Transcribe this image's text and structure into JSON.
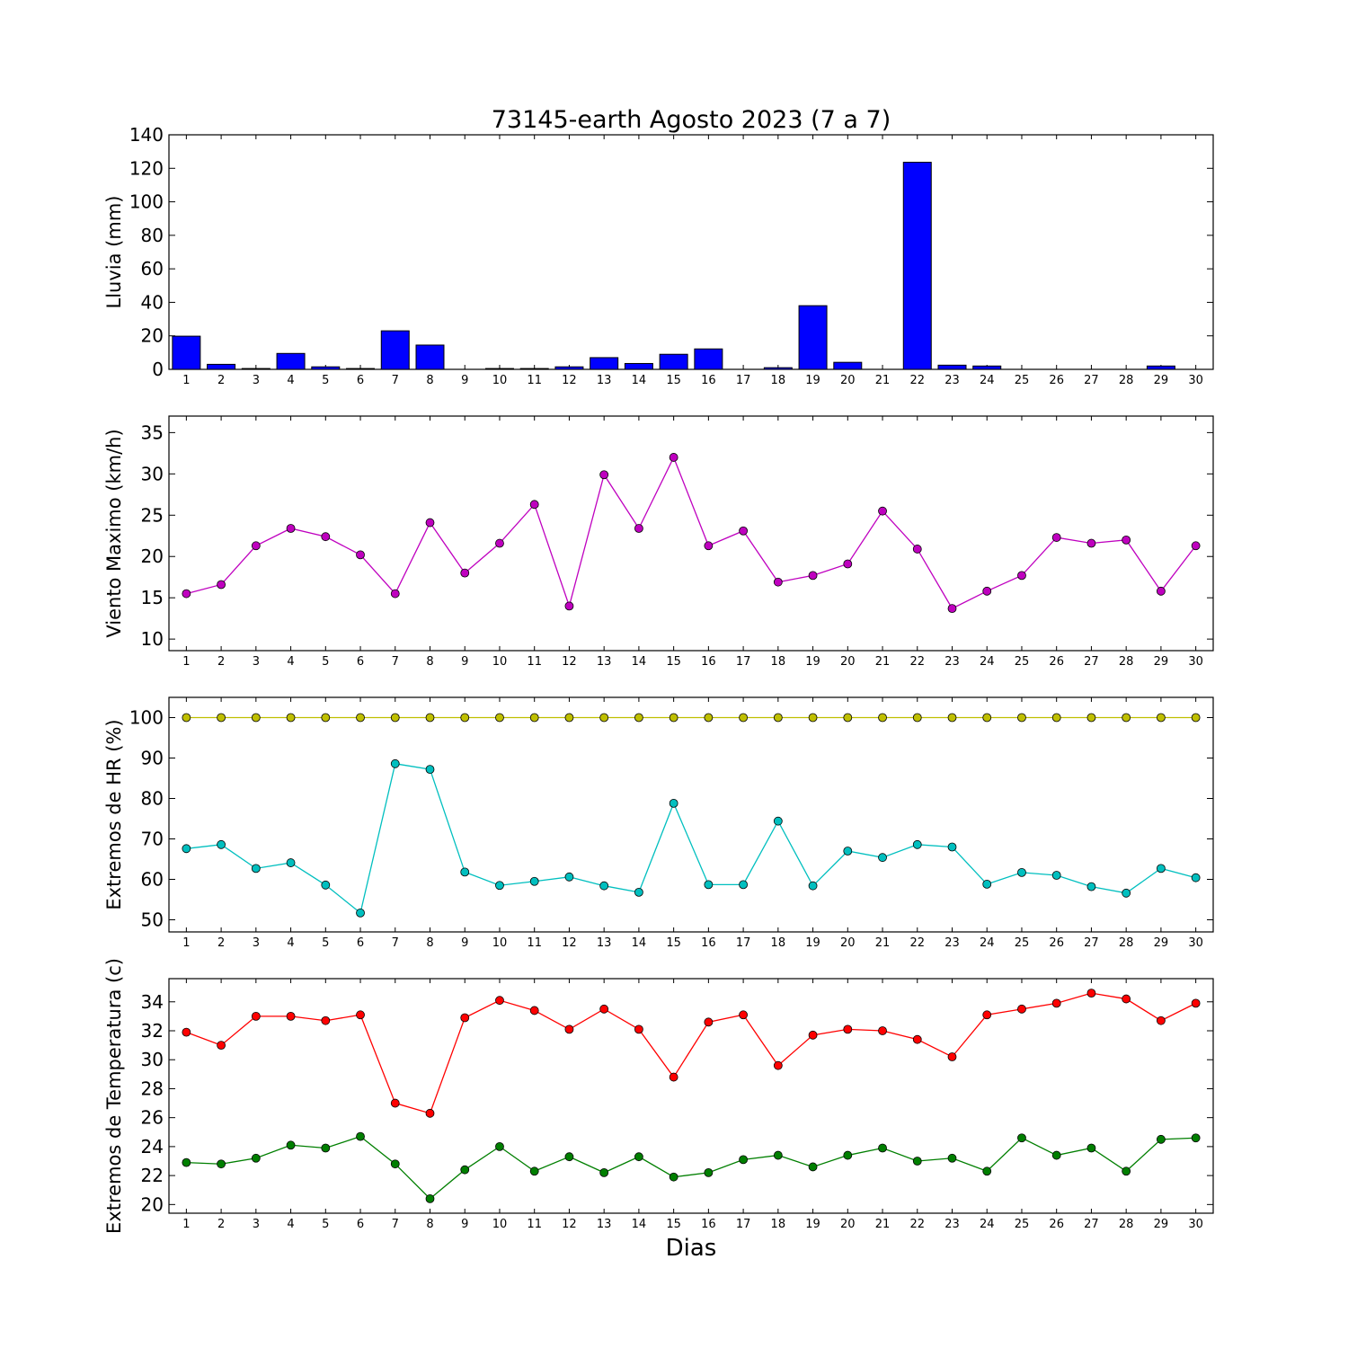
{
  "title": "73145-earth Agosto 2023  (7 a 7)",
  "xlabel": "Dias",
  "chart_data": [
    {
      "type": "bar",
      "ylabel": "Lluvia (mm)",
      "ylim": [
        0,
        140
      ],
      "yticks": [
        0,
        20,
        40,
        60,
        80,
        100,
        120,
        140
      ],
      "categories": [
        1,
        2,
        3,
        4,
        5,
        6,
        7,
        8,
        9,
        10,
        11,
        12,
        13,
        14,
        15,
        16,
        17,
        18,
        19,
        20,
        21,
        22,
        23,
        24,
        25,
        26,
        27,
        28,
        29,
        30
      ],
      "series": [
        {
          "color": "#0000ff",
          "values": [
            19.8,
            3.0,
            0.5,
            9.5,
            1.5,
            0.5,
            23.0,
            14.5,
            0,
            0.5,
            0.5,
            1.5,
            7.0,
            3.5,
            9.0,
            12.2,
            0,
            1.0,
            38.0,
            4.2,
            0,
            123.6,
            2.5,
            2.0,
            0,
            0,
            0,
            0,
            2.0,
            0
          ]
        }
      ]
    },
    {
      "type": "line",
      "ylabel": "Viento Maximo (km/h)",
      "ylim": [
        8.6,
        37
      ],
      "yticks": [
        10,
        15,
        20,
        25,
        30,
        35
      ],
      "x": [
        1,
        2,
        3,
        4,
        5,
        6,
        7,
        8,
        9,
        10,
        11,
        12,
        13,
        14,
        15,
        16,
        17,
        18,
        19,
        20,
        21,
        22,
        23,
        24,
        25,
        26,
        27,
        28,
        29,
        30
      ],
      "series": [
        {
          "color": "#bf00bf",
          "values": [
            15.5,
            16.6,
            21.3,
            23.4,
            22.4,
            20.2,
            15.5,
            24.1,
            18.0,
            21.6,
            26.3,
            14.0,
            29.9,
            23.4,
            32.0,
            21.3,
            23.1,
            16.9,
            17.7,
            19.1,
            25.5,
            20.9,
            13.7,
            15.8,
            17.7,
            22.3,
            21.6,
            22.0,
            15.8,
            21.3
          ]
        }
      ]
    },
    {
      "type": "line",
      "ylabel": "Extremos de HR (%)",
      "ylim": [
        47,
        105
      ],
      "yticks": [
        50,
        60,
        70,
        80,
        90,
        100
      ],
      "x": [
        1,
        2,
        3,
        4,
        5,
        6,
        7,
        8,
        9,
        10,
        11,
        12,
        13,
        14,
        15,
        16,
        17,
        18,
        19,
        20,
        21,
        22,
        23,
        24,
        25,
        26,
        27,
        28,
        29,
        30
      ],
      "series": [
        {
          "color": "#bfbf00",
          "values": [
            100,
            100,
            100,
            100,
            100,
            100,
            100,
            100,
            100,
            100,
            100,
            100,
            100,
            100,
            100,
            100,
            100,
            100,
            100,
            100,
            100,
            100,
            100,
            100,
            100,
            100,
            100,
            100,
            100,
            100
          ]
        },
        {
          "color": "#00bfbf",
          "values": [
            67.6,
            68.6,
            62.7,
            64.1,
            58.6,
            51.7,
            88.6,
            87.2,
            61.8,
            58.5,
            59.5,
            60.6,
            58.4,
            56.8,
            78.8,
            58.7,
            58.7,
            74.4,
            58.4,
            67.0,
            65.4,
            68.6,
            68.0,
            58.8,
            61.7,
            61.0,
            58.2,
            56.6,
            62.7,
            60.4
          ]
        }
      ]
    },
    {
      "type": "line",
      "ylabel": "Extremos de Temperatura (c)",
      "ylim": [
        19.4,
        35.6
      ],
      "yticks": [
        20,
        22,
        24,
        26,
        28,
        30,
        32,
        34
      ],
      "x": [
        1,
        2,
        3,
        4,
        5,
        6,
        7,
        8,
        9,
        10,
        11,
        12,
        13,
        14,
        15,
        16,
        17,
        18,
        19,
        20,
        21,
        22,
        23,
        24,
        25,
        26,
        27,
        28,
        29,
        30
      ],
      "series": [
        {
          "color": "#ff0000",
          "values": [
            31.9,
            31.0,
            33.0,
            33.0,
            32.7,
            33.1,
            27.0,
            26.3,
            32.9,
            34.1,
            33.4,
            32.1,
            33.5,
            32.1,
            28.8,
            32.6,
            33.1,
            29.6,
            31.7,
            32.1,
            32.0,
            31.4,
            30.2,
            33.1,
            33.5,
            33.9,
            34.6,
            34.2,
            32.7,
            33.9
          ]
        },
        {
          "color": "#007f00",
          "values": [
            22.9,
            22.8,
            23.2,
            24.1,
            23.9,
            24.7,
            22.8,
            20.4,
            22.4,
            24.0,
            22.3,
            23.3,
            22.2,
            23.3,
            21.9,
            22.2,
            23.1,
            23.4,
            22.6,
            23.4,
            23.9,
            23.0,
            23.2,
            22.3,
            24.6,
            23.4,
            23.9,
            22.3,
            24.5,
            24.6
          ]
        }
      ]
    }
  ]
}
